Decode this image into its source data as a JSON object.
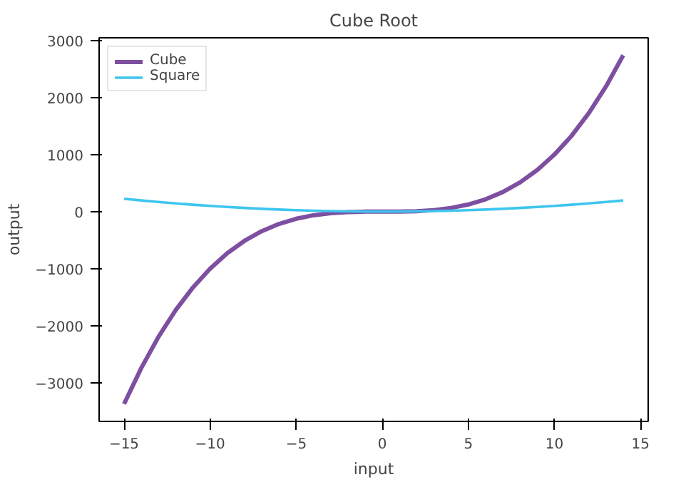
{
  "chart_data": {
    "type": "line",
    "title": "Cube Root",
    "xlabel": "input",
    "ylabel": "output",
    "x": [
      -15,
      -14,
      -13,
      -12,
      -11,
      -10,
      -9,
      -8,
      -7,
      -6,
      -5,
      -4,
      -3,
      -2,
      -1,
      0,
      1,
      2,
      3,
      4,
      5,
      6,
      7,
      8,
      9,
      10,
      11,
      12,
      13,
      14
    ],
    "series": [
      {
        "name": "Cube",
        "color": "#7e4fa0",
        "values": [
          -3375,
          -2744,
          -2197,
          -1728,
          -1331,
          -1000,
          -729,
          -512,
          -343,
          -216,
          -125,
          -64,
          -27,
          -8,
          -1,
          0,
          1,
          8,
          27,
          64,
          125,
          216,
          343,
          512,
          729,
          1000,
          1331,
          1728,
          2197,
          2744
        ]
      },
      {
        "name": "Square",
        "color": "#3ec6ee",
        "values": [
          225,
          196,
          169,
          144,
          121,
          100,
          81,
          64,
          49,
          36,
          25,
          16,
          9,
          4,
          1,
          0,
          1,
          4,
          9,
          16,
          25,
          36,
          49,
          64,
          81,
          100,
          121,
          144,
          169,
          196
        ]
      }
    ],
    "xlim": [
      -16.45,
      15.45
    ],
    "ylim": [
      -3681,
      3050
    ],
    "xticks": [
      {
        "value": -15,
        "label": "−15"
      },
      {
        "value": -10,
        "label": "−10"
      },
      {
        "value": -5,
        "label": "−5"
      },
      0,
      5,
      10,
      15
    ],
    "yticks": [
      {
        "value": -3000,
        "label": "−3000"
      },
      {
        "value": -2000,
        "label": "−2000"
      },
      {
        "value": -1000,
        "label": "−1000"
      },
      0,
      1000,
      2000,
      3000
    ],
    "legend": "top left",
    "grid": false,
    "marker": "none",
    "line_style": "solid"
  }
}
